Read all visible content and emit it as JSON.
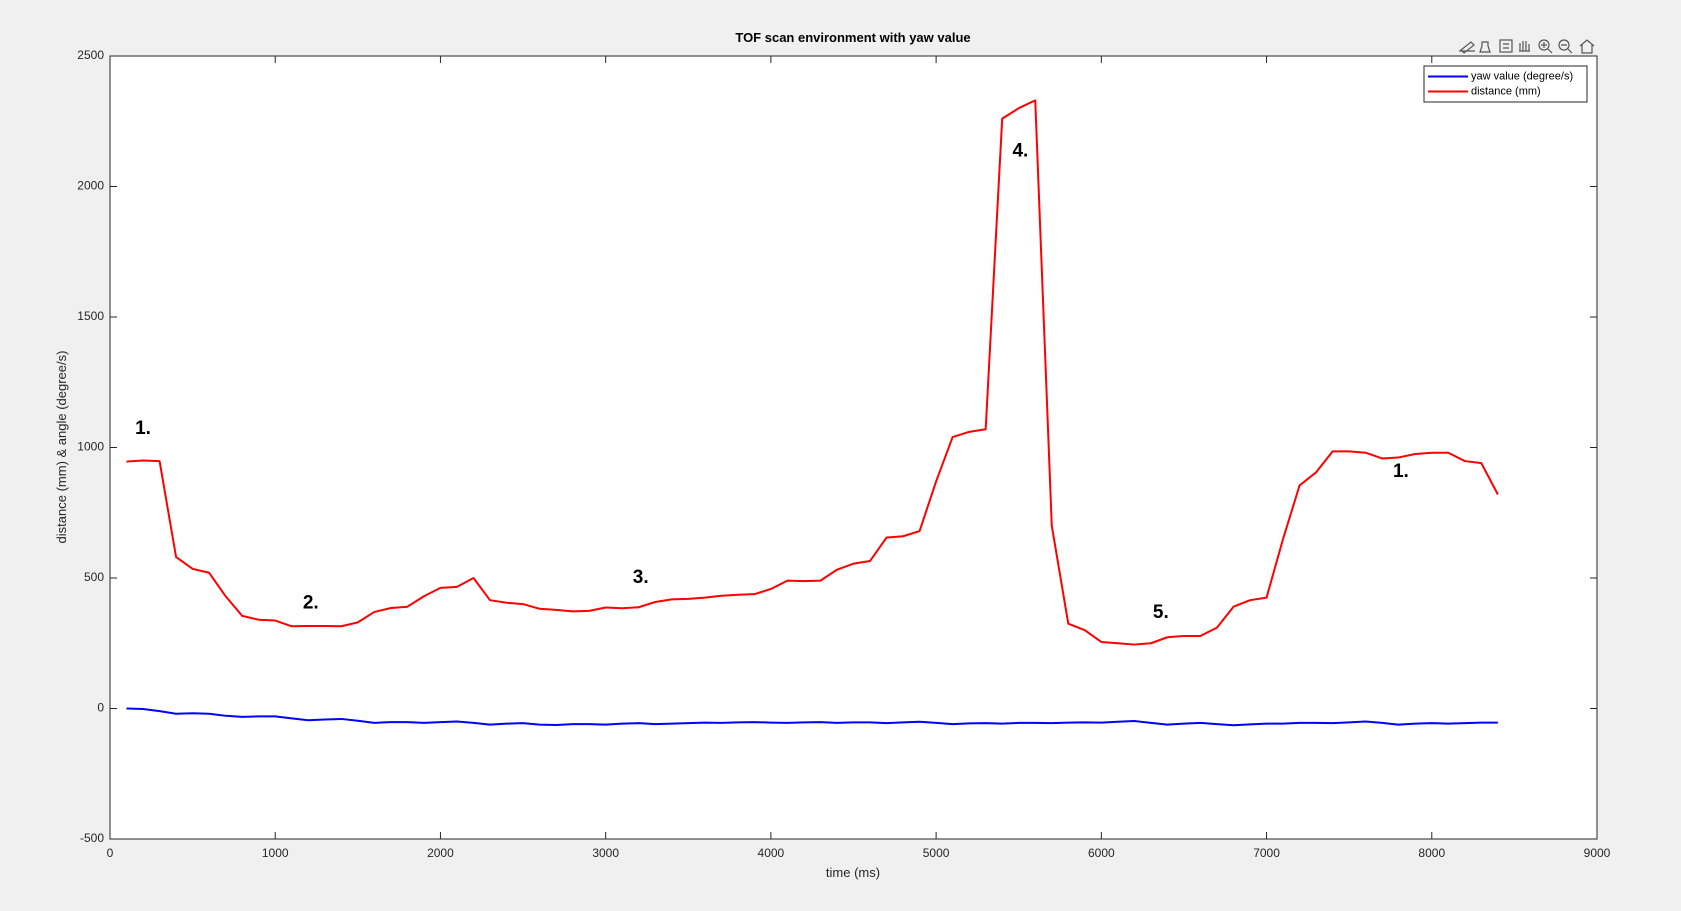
{
  "chart_data": {
    "type": "line",
    "title": "TOF scan environment with yaw value",
    "xlabel": "time (ms)",
    "ylabel": "distance (mm) & angle (degree/s)",
    "x": [
      100,
      200,
      300,
      400,
      500,
      600,
      700,
      800,
      900,
      1000,
      1100,
      1200,
      1300,
      1400,
      1500,
      1600,
      1700,
      1800,
      1900,
      2000,
      2100,
      2200,
      2300,
      2400,
      2500,
      2600,
      2700,
      2800,
      2900,
      3000,
      3100,
      3200,
      3300,
      3400,
      3500,
      3600,
      3700,
      3800,
      3900,
      4000,
      4100,
      4200,
      4300,
      4400,
      4500,
      4600,
      4700,
      4800,
      4900,
      5000,
      5100,
      5200,
      5300,
      5400,
      5500,
      5600,
      5700,
      5800,
      5900,
      6000,
      6100,
      6200,
      6300,
      6400,
      6500,
      6600,
      6700,
      6800,
      6900,
      7000,
      7100,
      7200,
      7300,
      7400,
      7500,
      7600,
      7700,
      7800,
      7900,
      8000,
      8100,
      8200,
      8300,
      8400
    ],
    "series": [
      {
        "name": "yaw value (degree/s)",
        "color": "#0000ff",
        "values": [
          0,
          -2,
          -10,
          -20,
          -18,
          -20,
          -28,
          -32,
          -30,
          -30,
          -38,
          -45,
          -42,
          -40,
          -47,
          -55,
          -52,
          -52,
          -55,
          -52,
          -50,
          -55,
          -62,
          -58,
          -56,
          -62,
          -63,
          -60,
          -60,
          -62,
          -58,
          -56,
          -60,
          -58,
          -56,
          -54,
          -55,
          -53,
          -52,
          -54,
          -55,
          -53,
          -52,
          -55,
          -53,
          -53,
          -56,
          -53,
          -51,
          -55,
          -60,
          -57,
          -56,
          -58,
          -55,
          -55,
          -56,
          -54,
          -53,
          -54,
          -51,
          -48,
          -55,
          -62,
          -58,
          -55,
          -60,
          -64,
          -61,
          -58,
          -58,
          -55,
          -55,
          -56,
          -53,
          -50,
          -55,
          -62,
          -58,
          -56,
          -58,
          -56,
          -54,
          -54
        ]
      },
      {
        "name": "distance (mm)",
        "color": "#ff0000",
        "values": [
          946,
          950,
          948,
          580,
          535,
          520,
          430,
          355,
          340,
          337,
          315,
          316,
          316,
          315,
          330,
          370,
          385,
          390,
          430,
          462,
          466,
          500,
          415,
          405,
          400,
          382,
          378,
          372,
          374,
          387,
          384,
          388,
          408,
          418,
          420,
          425,
          432,
          436,
          438,
          458,
          490,
          488,
          490,
          532,
          555,
          565,
          655,
          660,
          680,
          870,
          1040,
          1060,
          1070,
          2260,
          2300,
          2330,
          700,
          325,
          300,
          255,
          250,
          245,
          250,
          273,
          278,
          278,
          310,
          390,
          415,
          425,
          650,
          855,
          905,
          985,
          985,
          980,
          958,
          962,
          975,
          980,
          980,
          948,
          940,
          820
        ]
      }
    ],
    "annotations": [
      {
        "text": "1.",
        "x": 200,
        "y": 1070
      },
      {
        "text": "2.",
        "x": 1215,
        "y": 403
      },
      {
        "text": "3.",
        "x": 3212,
        "y": 500
      },
      {
        "text": "4.",
        "x": 5510,
        "y": 2135
      },
      {
        "text": "5.",
        "x": 6360,
        "y": 366
      },
      {
        "text": "1.",
        "x": 7813,
        "y": 907
      }
    ],
    "xlim": [
      0,
      9000
    ],
    "xticks": [
      0,
      1000,
      2000,
      3000,
      4000,
      5000,
      6000,
      7000,
      8000,
      9000
    ],
    "ylim": [
      -500,
      2500
    ],
    "yticks": [
      -500,
      0,
      500,
      1000,
      1500,
      2000,
      2500
    ],
    "grid": false,
    "legend": "northeast"
  }
}
